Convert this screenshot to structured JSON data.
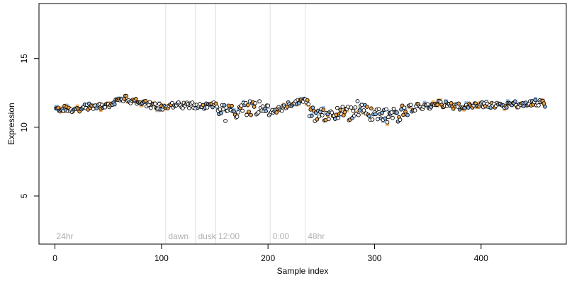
{
  "chart_data": {
    "type": "scatter",
    "title": "",
    "xlabel": "Sample index",
    "ylabel": "Expression",
    "xlim": [
      -15,
      480
    ],
    "ylim": [
      1.5,
      19
    ],
    "x_ticks": [
      0,
      100,
      200,
      300,
      400
    ],
    "y_ticks": [
      5,
      10,
      15
    ],
    "grid": false,
    "colors": {
      "black": "#000000",
      "orange": "#f0a040",
      "blue": "#8db4e0",
      "separator": "#dddddd"
    },
    "sections": [
      {
        "label": "24hr",
        "start": 0
      },
      {
        "label": "dawn",
        "start": 105
      },
      {
        "label": "dusk",
        "start": 133
      },
      {
        "label": "12:00",
        "start": 152
      },
      {
        "label": "0:00",
        "start": 203
      },
      {
        "label": "48hr",
        "start": 236
      }
    ],
    "anchor_points": [
      [
        1,
        11.3
      ],
      [
        10,
        11.35
      ],
      [
        20,
        11.3
      ],
      [
        30,
        11.5
      ],
      [
        40,
        11.5
      ],
      [
        50,
        11.6
      ],
      [
        57,
        11.8
      ],
      [
        63,
        12.0
      ],
      [
        66,
        12.2
      ],
      [
        70,
        11.9
      ],
      [
        80,
        11.8
      ],
      [
        90,
        11.6
      ],
      [
        100,
        11.5
      ],
      [
        110,
        11.6
      ],
      [
        120,
        11.6
      ],
      [
        130,
        11.6
      ],
      [
        140,
        11.55
      ],
      [
        150,
        11.7
      ],
      [
        155,
        11.3
      ],
      [
        160,
        11.0
      ],
      [
        170,
        11.2
      ],
      [
        180,
        11.35
      ],
      [
        190,
        11.5
      ],
      [
        200,
        11.55
      ],
      [
        203,
        11.0
      ],
      [
        210,
        11.3
      ],
      [
        220,
        11.7
      ],
      [
        230,
        11.9
      ],
      [
        237,
        12.0
      ],
      [
        240,
        10.9
      ],
      [
        250,
        11.0
      ],
      [
        260,
        10.9
      ],
      [
        270,
        11.0
      ],
      [
        280,
        11.1
      ],
      [
        284,
        11.5
      ],
      [
        290,
        11.1
      ],
      [
        300,
        11.0
      ],
      [
        310,
        10.8
      ],
      [
        320,
        10.9
      ],
      [
        330,
        11.2
      ],
      [
        340,
        11.5
      ],
      [
        350,
        11.5
      ],
      [
        360,
        11.7
      ],
      [
        370,
        11.6
      ],
      [
        380,
        11.5
      ],
      [
        390,
        11.5
      ],
      [
        400,
        11.7
      ],
      [
        410,
        11.6
      ],
      [
        420,
        11.6
      ],
      [
        430,
        11.7
      ],
      [
        440,
        11.6
      ],
      [
        450,
        11.8
      ],
      [
        460,
        11.7
      ]
    ],
    "n_points": 460
  }
}
